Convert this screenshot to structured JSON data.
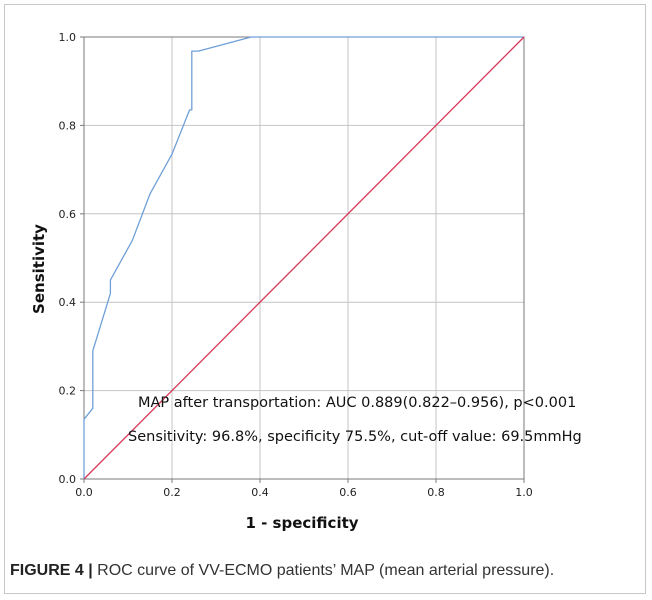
{
  "chart_data": {
    "type": "line",
    "xlabel": "1 - specificity",
    "ylabel": "Sensitivity",
    "xlim": [
      0,
      1
    ],
    "ylim": [
      0,
      1
    ],
    "xticks": [
      "0.0",
      "0.2",
      "0.4",
      "0.6",
      "0.8",
      "1.0"
    ],
    "yticks": [
      "0.0",
      "0.2",
      "0.4",
      "0.6",
      "0.8",
      "1.0"
    ],
    "grid": true,
    "series": [
      {
        "color": "#6fa0d8",
        "x": [
          0.0,
          0.0,
          0.02,
          0.02,
          0.02,
          0.06,
          0.06,
          0.11,
          0.15,
          0.2,
          0.24,
          0.245,
          0.245,
          0.26,
          0.38,
          1.0
        ],
        "y": [
          0.0,
          0.135,
          0.16,
          0.21,
          0.29,
          0.42,
          0.45,
          0.54,
          0.645,
          0.735,
          0.835,
          0.835,
          0.968,
          0.968,
          1.0,
          1.0
        ]
      },
      {
        "color": "#d63a5a",
        "x": [
          0,
          1
        ],
        "y": [
          0,
          1
        ]
      }
    ],
    "annotations": [
      "MAP after transportation: AUC 0.889(0.822–0.956), p<0.001",
      "Sensitivity: 96.8%, specificity 75.5%, cut-off value: 69.5mmHg"
    ]
  },
  "caption": {
    "label": "FIGURE 4 |",
    "text": " ROC curve of VV-ECMO patients’ MAP (mean arterial pressure)."
  }
}
